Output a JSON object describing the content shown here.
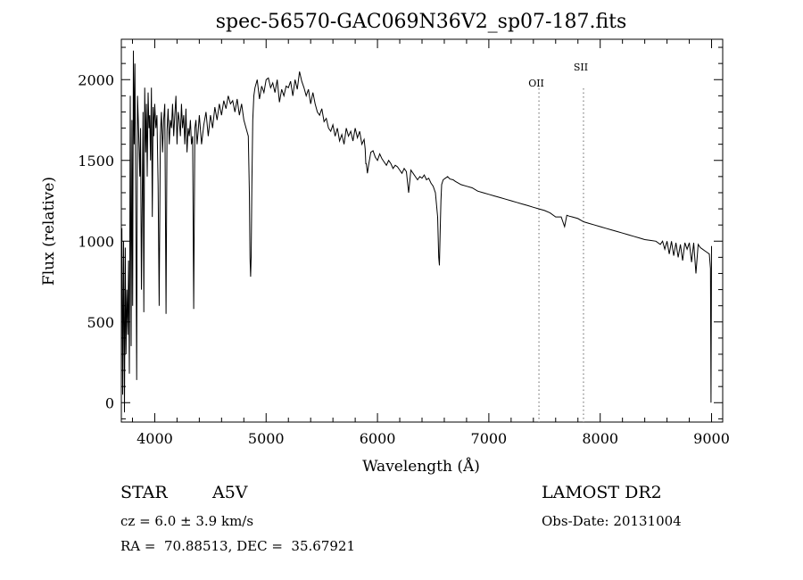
{
  "chart_data": {
    "type": "line",
    "title": "spec-56570-GAC069N36V2_sp07-187.fits",
    "xlabel": "Wavelength (Å)",
    "ylabel": "Flux (relative)",
    "xlim": [
      3700,
      9100
    ],
    "ylim": [
      -120,
      2250
    ],
    "xticks": [
      4000,
      5000,
      6000,
      7000,
      8000,
      9000
    ],
    "yticks": [
      0,
      500,
      1000,
      1500,
      2000
    ],
    "grid": false,
    "lines": [
      {
        "label": "OII",
        "x": 7450
      },
      {
        "label": "SII",
        "x": 7850
      }
    ],
    "series": [
      {
        "x": [
          3705,
          3712,
          3720,
          3728,
          3735,
          3742,
          3750,
          3758,
          3765,
          3772,
          3780,
          3788,
          3795,
          3802,
          3808,
          3815,
          3822,
          3830,
          3838,
          3845,
          3852,
          3860,
          3866,
          3872,
          3880,
          3888,
          3895,
          3902,
          3910,
          3918,
          3925,
          3932,
          3940,
          3948,
          3955,
          3962,
          3970,
          3978,
          3985,
          3992,
          4000,
          4010,
          4020,
          4030,
          4040,
          4050,
          4060,
          4070,
          4080,
          4090,
          4101,
          4110,
          4120,
          4130,
          4140,
          4150,
          4160,
          4170,
          4180,
          4190,
          4200,
          4210,
          4220,
          4230,
          4240,
          4250,
          4260,
          4270,
          4280,
          4290,
          4300,
          4310,
          4320,
          4330,
          4340,
          4350,
          4360,
          4370,
          4380,
          4390,
          4400,
          4420,
          4440,
          4460,
          4480,
          4500,
          4520,
          4540,
          4560,
          4580,
          4600,
          4620,
          4640,
          4660,
          4680,
          4700,
          4720,
          4740,
          4760,
          4780,
          4800,
          4820,
          4840,
          4850,
          4855,
          4861,
          4866,
          4872,
          4880,
          4890,
          4900,
          4920,
          4940,
          4960,
          4980,
          5000,
          5020,
          5040,
          5060,
          5080,
          5100,
          5120,
          5140,
          5160,
          5180,
          5200,
          5220,
          5240,
          5260,
          5280,
          5300,
          5320,
          5340,
          5360,
          5380,
          5400,
          5420,
          5440,
          5460,
          5480,
          5500,
          5520,
          5540,
          5560,
          5580,
          5600,
          5620,
          5640,
          5660,
          5680,
          5700,
          5720,
          5740,
          5760,
          5780,
          5800,
          5820,
          5840,
          5860,
          5880,
          5890,
          5895,
          5900,
          5910,
          5920,
          5940,
          5960,
          5980,
          6000,
          6020,
          6040,
          6060,
          6080,
          6100,
          6120,
          6140,
          6160,
          6180,
          6200,
          6220,
          6240,
          6260,
          6280,
          6300,
          6320,
          6340,
          6360,
          6380,
          6400,
          6420,
          6440,
          6460,
          6480,
          6500,
          6520,
          6540,
          6550,
          6556,
          6563,
          6570,
          6576,
          6590,
          6610,
          6630,
          6650,
          6680,
          6700,
          6750,
          6800,
          6850,
          6900,
          6950,
          7000,
          7050,
          7100,
          7150,
          7200,
          7250,
          7300,
          7350,
          7400,
          7450,
          7500,
          7550,
          7600,
          7650,
          7680,
          7700,
          7720,
          7750,
          7800,
          7850,
          7900,
          7950,
          8000,
          8050,
          8100,
          8150,
          8200,
          8250,
          8300,
          8350,
          8400,
          8450,
          8500,
          8540,
          8560,
          8580,
          8600,
          8620,
          8640,
          8660,
          8680,
          8700,
          8720,
          8740,
          8760,
          8780,
          8800,
          8820,
          8840,
          8860,
          8880,
          8900,
          8920,
          8940,
          8960,
          8980,
          8990,
          8995,
          9000
        ],
        "values": [
          1080,
          50,
          1000,
          -60,
          960,
          300,
          700,
          420,
          880,
          180,
          1900,
          350,
          1750,
          600,
          2180,
          1600,
          2100,
          1200,
          140,
          1900,
          1750,
          1550,
          1400,
          1700,
          700,
          1300,
          1800,
          560,
          1950,
          1550,
          1850,
          1400,
          1920,
          1700,
          1780,
          1500,
          1950,
          1150,
          1830,
          1650,
          1850,
          1700,
          1780,
          1350,
          600,
          1650,
          1800,
          1550,
          1750,
          1850,
          550,
          1680,
          1820,
          1600,
          1750,
          1700,
          1850,
          1650,
          1780,
          1900,
          1600,
          1800,
          1750,
          1650,
          1850,
          1700,
          1780,
          1600,
          1820,
          1550,
          1700,
          1650,
          1750,
          1600,
          1650,
          580,
          1700,
          1750,
          1600,
          1680,
          1780,
          1600,
          1720,
          1800,
          1650,
          1780,
          1700,
          1830,
          1750,
          1850,
          1780,
          1870,
          1820,
          1900,
          1850,
          1870,
          1800,
          1880,
          1780,
          1850,
          1750,
          1700,
          1650,
          1300,
          900,
          780,
          900,
          1350,
          1750,
          1900,
          1950,
          2000,
          1880,
          1960,
          1920,
          2000,
          2010,
          1950,
          1980,
          1920,
          2000,
          1860,
          1940,
          1900,
          1960,
          1950,
          1990,
          1900,
          2000,
          1940,
          2050,
          1990,
          1950,
          1900,
          1940,
          1850,
          1920,
          1850,
          1800,
          1780,
          1820,
          1740,
          1760,
          1700,
          1680,
          1720,
          1650,
          1700,
          1620,
          1660,
          1600,
          1700,
          1650,
          1680,
          1620,
          1700,
          1640,
          1680,
          1600,
          1630,
          1570,
          1480,
          1480,
          1420,
          1470,
          1550,
          1560,
          1520,
          1500,
          1540,
          1510,
          1490,
          1470,
          1500,
          1480,
          1450,
          1470,
          1460,
          1440,
          1420,
          1450,
          1430,
          1300,
          1440,
          1420,
          1400,
          1380,
          1400,
          1390,
          1410,
          1380,
          1390,
          1360,
          1340,
          1300,
          1150,
          900,
          850,
          1050,
          1250,
          1350,
          1380,
          1390,
          1400,
          1385,
          1380,
          1370,
          1350,
          1340,
          1330,
          1310,
          1300,
          1290,
          1280,
          1270,
          1260,
          1250,
          1240,
          1230,
          1220,
          1210,
          1200,
          1190,
          1175,
          1150,
          1150,
          1090,
          1160,
          1155,
          1150,
          1140,
          1120,
          1110,
          1100,
          1090,
          1080,
          1070,
          1060,
          1050,
          1040,
          1030,
          1020,
          1010,
          1005,
          1000,
          980,
          1000,
          950,
          1000,
          920,
          1000,
          910,
          990,
          900,
          980,
          880,
          990,
          950,
          990,
          870,
          990,
          800,
          980,
          960,
          950,
          940,
          930,
          920,
          830,
          0,
          970
        ]
      }
    ]
  },
  "info": {
    "object_class": "STAR",
    "subclass": "A5V",
    "cz": "cz = 6.0 ± 3.9 km/s",
    "coords": "RA =  70.88513, DEC =  35.67921",
    "survey": "LAMOST DR2",
    "obs_date": "Obs-Date: 20131004"
  }
}
